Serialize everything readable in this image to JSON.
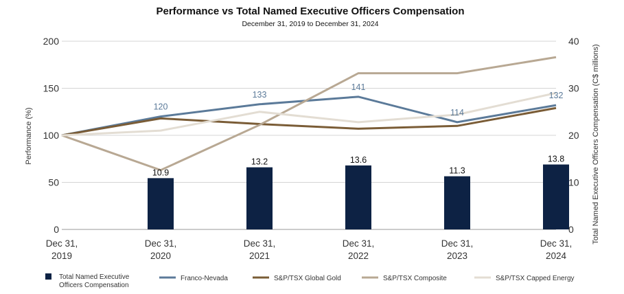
{
  "chart_data": {
    "type": "bar+line",
    "title": "Performance vs Total Named Executive Officers Compensation",
    "subtitle": "December 31, 2019 to December 31, 2024",
    "ylabel": "Performance (%)",
    "y2label": "Total Named Executive Officers Compensation (C$ millions)",
    "ylim": [
      0,
      200
    ],
    "y2lim": [
      0,
      40
    ],
    "yticks": [
      0,
      50,
      100,
      150,
      200
    ],
    "y2ticks": [
      0,
      10,
      20,
      30,
      40
    ],
    "categories": [
      [
        "Dec 31,",
        "2019"
      ],
      [
        "Dec 31,",
        "2020"
      ],
      [
        "Dec 31,",
        "2021"
      ],
      [
        "Dec 31,",
        "2022"
      ],
      [
        "Dec 31,",
        "2023"
      ],
      [
        "Dec 31,",
        "2024"
      ]
    ],
    "grid": true,
    "legend_position": "bottom",
    "bars": {
      "name": "Total Named Executive Officers Compensation",
      "legend_lines": [
        "Total Named Executive",
        "Officers Compensation"
      ],
      "color": "#0d2244",
      "values": [
        null,
        10.9,
        13.2,
        13.6,
        11.3,
        13.8
      ],
      "labels": [
        "",
        "10.9",
        "13.2",
        "13.6",
        "11.3",
        "13.8"
      ]
    },
    "series": [
      {
        "name": "Franco-Nevada",
        "color": "#5b7a99",
        "width": 3,
        "values": [
          100,
          120,
          133,
          141,
          114,
          132
        ],
        "labels": [
          "",
          "120",
          "133",
          "141",
          "114",
          "132"
        ]
      },
      {
        "name": "S&P/TSX Global Gold",
        "color": "#7a5c36",
        "width": 3,
        "values": [
          100,
          118,
          112,
          107,
          110,
          129
        ]
      },
      {
        "name": "S&P/TSX Composite",
        "color": "#b8a893",
        "width": 3,
        "values": [
          100,
          63,
          111,
          166,
          166,
          183
        ]
      },
      {
        "name": "S&P/TSX Capped Energy",
        "color": "#e3ddd3",
        "width": 3,
        "values": [
          100,
          105,
          125,
          114,
          122,
          145
        ]
      }
    ]
  }
}
